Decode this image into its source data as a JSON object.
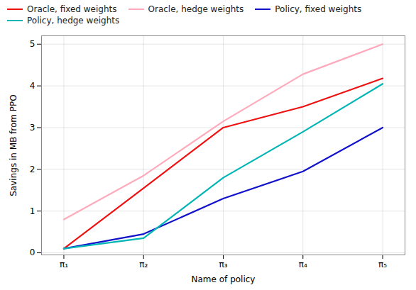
{
  "chart_data": {
    "type": "line",
    "x": [
      1,
      2,
      3,
      4,
      5
    ],
    "xlabel": "Name of policy",
    "ylabel": "Savings in MB from PPO",
    "series": [
      {
        "name": "Oracle, fixed weights",
        "color": "#ee1111",
        "values": [
          0.1,
          1.55,
          3.0,
          3.5,
          4.18
        ]
      },
      {
        "name": "Oracle, hedge weights",
        "color": "#ffaabc",
        "values": [
          0.8,
          1.85,
          3.15,
          4.28,
          5.0
        ]
      },
      {
        "name": "Policy, fixed weights",
        "color": "#1111cc",
        "values": [
          0.1,
          0.45,
          1.3,
          1.95,
          3.0
        ]
      },
      {
        "name": "Policy, hedge weights",
        "color": "#00b5b5",
        "values": [
          0.1,
          0.35,
          1.8,
          2.9,
          4.05
        ]
      }
    ],
    "xlim": [
      0.72,
      5.28
    ],
    "ylim": [
      -0.05,
      5.2
    ],
    "xticks": [
      {
        "value": 1,
        "label": "π₁"
      },
      {
        "value": 2,
        "label": "π₂"
      },
      {
        "value": 3,
        "label": "π₃"
      },
      {
        "value": 4,
        "label": "π₄"
      },
      {
        "value": 5,
        "label": "π₅"
      }
    ],
    "yticks": [
      0,
      1,
      2,
      3,
      4,
      5
    ],
    "grid": true,
    "legend": "upper left"
  }
}
